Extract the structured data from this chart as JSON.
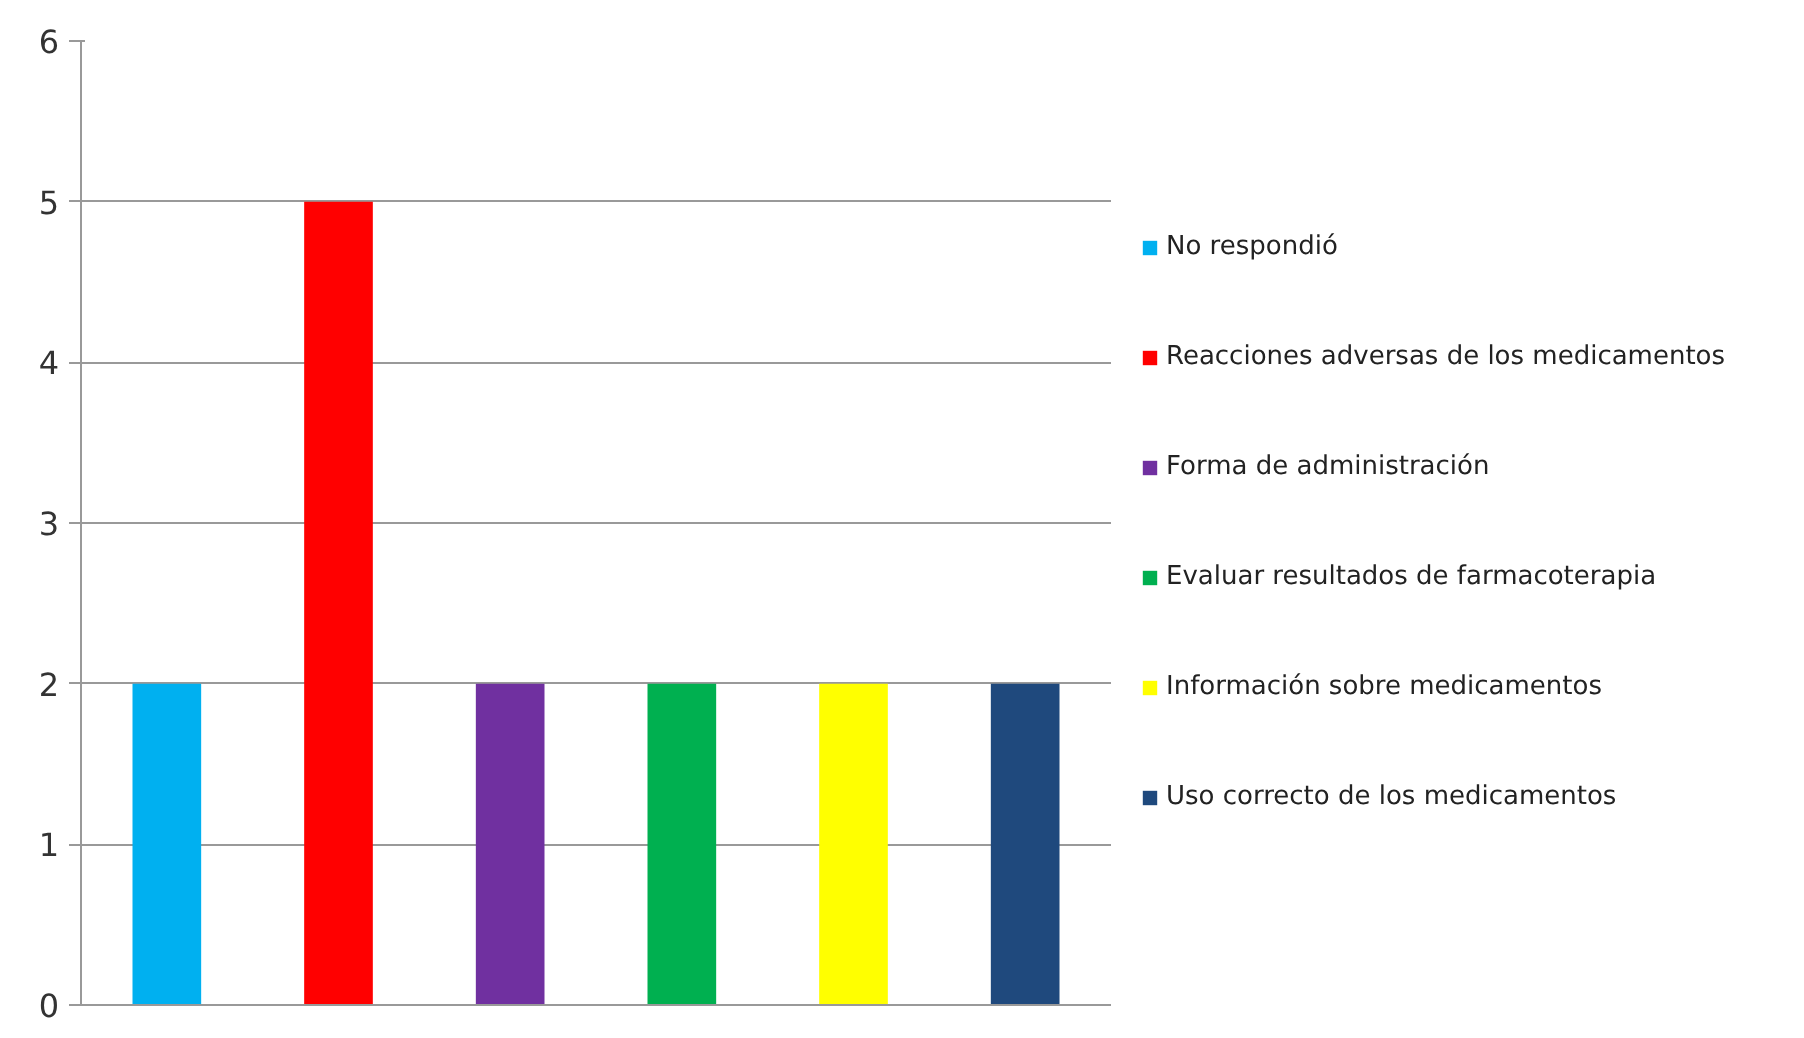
{
  "chart_data": {
    "type": "bar",
    "categories": [
      null
    ],
    "series": [
      {
        "name": "No respondió",
        "color": "#00b0f0",
        "values": [
          2
        ]
      },
      {
        "name": "Reacciones adversas de los medicamentos",
        "color": "#ff0000",
        "values": [
          5
        ]
      },
      {
        "name": "Forma de administración",
        "color": "#7030a0",
        "values": [
          2
        ]
      },
      {
        "name": "Evaluar resultados de farmacoterapia",
        "color": "#00b050",
        "values": [
          2
        ]
      },
      {
        "name": "Información sobre medicamentos",
        "color": "#ffff00",
        "values": [
          2
        ]
      },
      {
        "name": "Uso correcto de los medicamentos",
        "color": "#1f497d",
        "values": [
          2
        ]
      }
    ],
    "ylim": [
      0,
      6
    ],
    "yticks": [
      0,
      1,
      2,
      3,
      4,
      5,
      6
    ],
    "grid": "y",
    "legend": "right",
    "tick_labels": "y"
  }
}
